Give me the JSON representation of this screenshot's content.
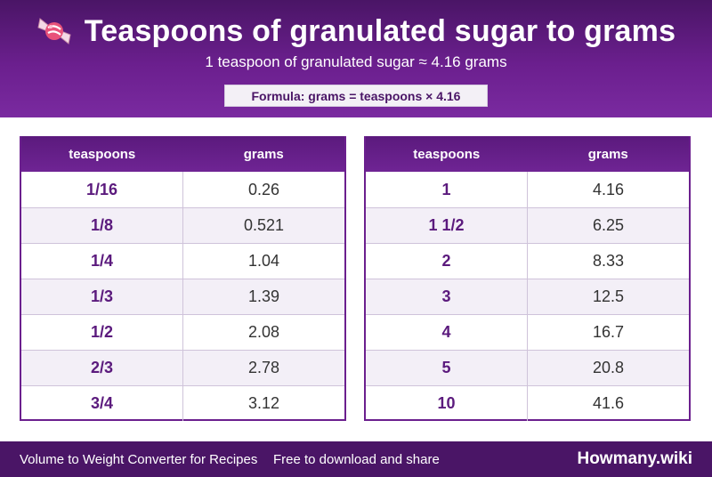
{
  "header": {
    "icon": "candy-icon",
    "title": "Teaspoons of granulated sugar to grams",
    "subtitle": "1 teaspoon of granulated sugar ≈ 4.16 grams",
    "formula": "Formula: grams = teaspoons × 4.16"
  },
  "tables": [
    {
      "headers": {
        "col1": "teaspoons",
        "col2": "grams"
      },
      "rows": [
        {
          "tsp": "1/16",
          "grams": "0.26"
        },
        {
          "tsp": "1/8",
          "grams": "0.521"
        },
        {
          "tsp": "1/4",
          "grams": "1.04"
        },
        {
          "tsp": "1/3",
          "grams": "1.39"
        },
        {
          "tsp": "1/2",
          "grams": "2.08"
        },
        {
          "tsp": "2/3",
          "grams": "2.78"
        },
        {
          "tsp": "3/4",
          "grams": "3.12"
        }
      ]
    },
    {
      "headers": {
        "col1": "teaspoons",
        "col2": "grams"
      },
      "rows": [
        {
          "tsp": "1",
          "grams": "4.16"
        },
        {
          "tsp": "1 1/2",
          "grams": "6.25"
        },
        {
          "tsp": "2",
          "grams": "8.33"
        },
        {
          "tsp": "3",
          "grams": "12.5"
        },
        {
          "tsp": "4",
          "grams": "16.7"
        },
        {
          "tsp": "5",
          "grams": "20.8"
        },
        {
          "tsp": "10",
          "grams": "41.6"
        }
      ]
    }
  ],
  "footer": {
    "left": "Volume to Weight Converter for Recipes",
    "middle": "Free to download and share",
    "brand": "Howmany.wiki"
  },
  "colors": {
    "header_dark": "#4a1566",
    "header_light": "#7a2aa0",
    "accent": "#5b1a7d",
    "row_alt": "#f3eff7"
  }
}
